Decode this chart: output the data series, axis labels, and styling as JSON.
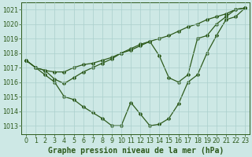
{
  "title": "Graphe pression niveau de la mer (hPa)",
  "background_color": "#cde8e5",
  "plot_bg_color": "#cde8e5",
  "grid_color": "#aacfcc",
  "line_color": "#2d5a1b",
  "x_values": [
    0,
    1,
    2,
    3,
    4,
    5,
    6,
    7,
    8,
    9,
    10,
    11,
    12,
    13,
    14,
    15,
    16,
    17,
    18,
    19,
    20,
    21,
    22,
    23
  ],
  "line1": [
    1017.5,
    1017.0,
    1016.8,
    1016.7,
    1016.7,
    1017.0,
    1017.2,
    1017.3,
    1017.5,
    1017.7,
    1018.0,
    1018.2,
    1018.5,
    1018.8,
    1019.0,
    1019.2,
    1019.5,
    1019.8,
    1020.0,
    1020.3,
    1020.5,
    1020.7,
    1021.0,
    1021.1
  ],
  "line2": [
    1017.5,
    1017.0,
    1016.8,
    1016.2,
    1015.9,
    1016.3,
    1016.7,
    1017.0,
    1017.3,
    1017.6,
    1018.0,
    1018.3,
    1018.6,
    1018.8,
    1017.8,
    1016.3,
    1016.0,
    1016.5,
    1019.0,
    1019.2,
    1020.0,
    1020.5,
    1021.0,
    1021.1
  ],
  "line3": [
    1017.5,
    1017.0,
    1016.5,
    1016.0,
    1015.0,
    1014.8,
    1014.3,
    1013.9,
    1013.5,
    1013.0,
    1013.0,
    1014.6,
    1013.8,
    1013.0,
    1013.1,
    1013.5,
    1014.5,
    1016.0,
    1016.5,
    1018.0,
    1019.2,
    1020.3,
    1020.5,
    1021.1
  ],
  "ylim_min": 1012.4,
  "ylim_max": 1021.5,
  "yticks": [
    1013,
    1014,
    1015,
    1016,
    1017,
    1018,
    1019,
    1020,
    1021
  ],
  "tick_fontsize": 5.8,
  "label_fontsize": 7.0
}
